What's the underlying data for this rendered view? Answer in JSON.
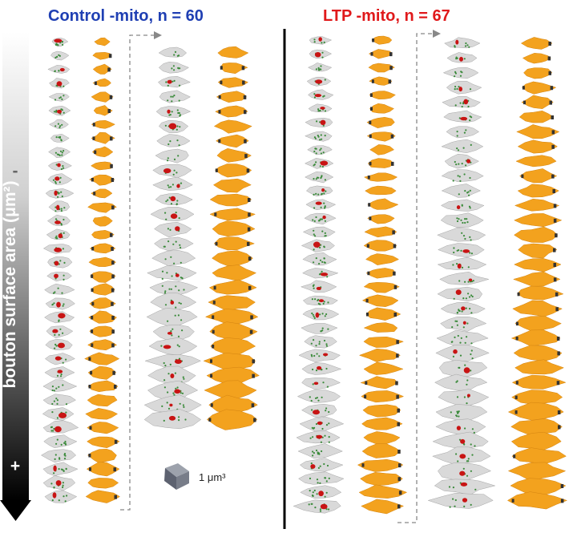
{
  "panels": {
    "control": {
      "title": "Control -mito, n = 60",
      "title_color": "#1f3fb3",
      "count": 60,
      "columns_per_type": 2
    },
    "ltp": {
      "title": "LTP -mito, n = 67",
      "title_color": "#e0191b",
      "count": 67,
      "columns_per_type": 2
    }
  },
  "axis": {
    "label": "bouton surface area (μm²)",
    "plus_sign": "+",
    "minus_sign": "-",
    "gradient_top_color": "#ffffff",
    "gradient_bottom_color": "#000000"
  },
  "scale_bar": {
    "label": "1 μm³",
    "color": "#6e7280"
  },
  "colors": {
    "mesh_fill": "#d9d9d9",
    "mesh_vesicles": "#3a8a3a",
    "mitochondria": "#c81414",
    "bouton_surface": "#f3a21e",
    "bouton_cap": "#333333",
    "divider": "#000000",
    "dashed_connector": "#888888"
  }
}
